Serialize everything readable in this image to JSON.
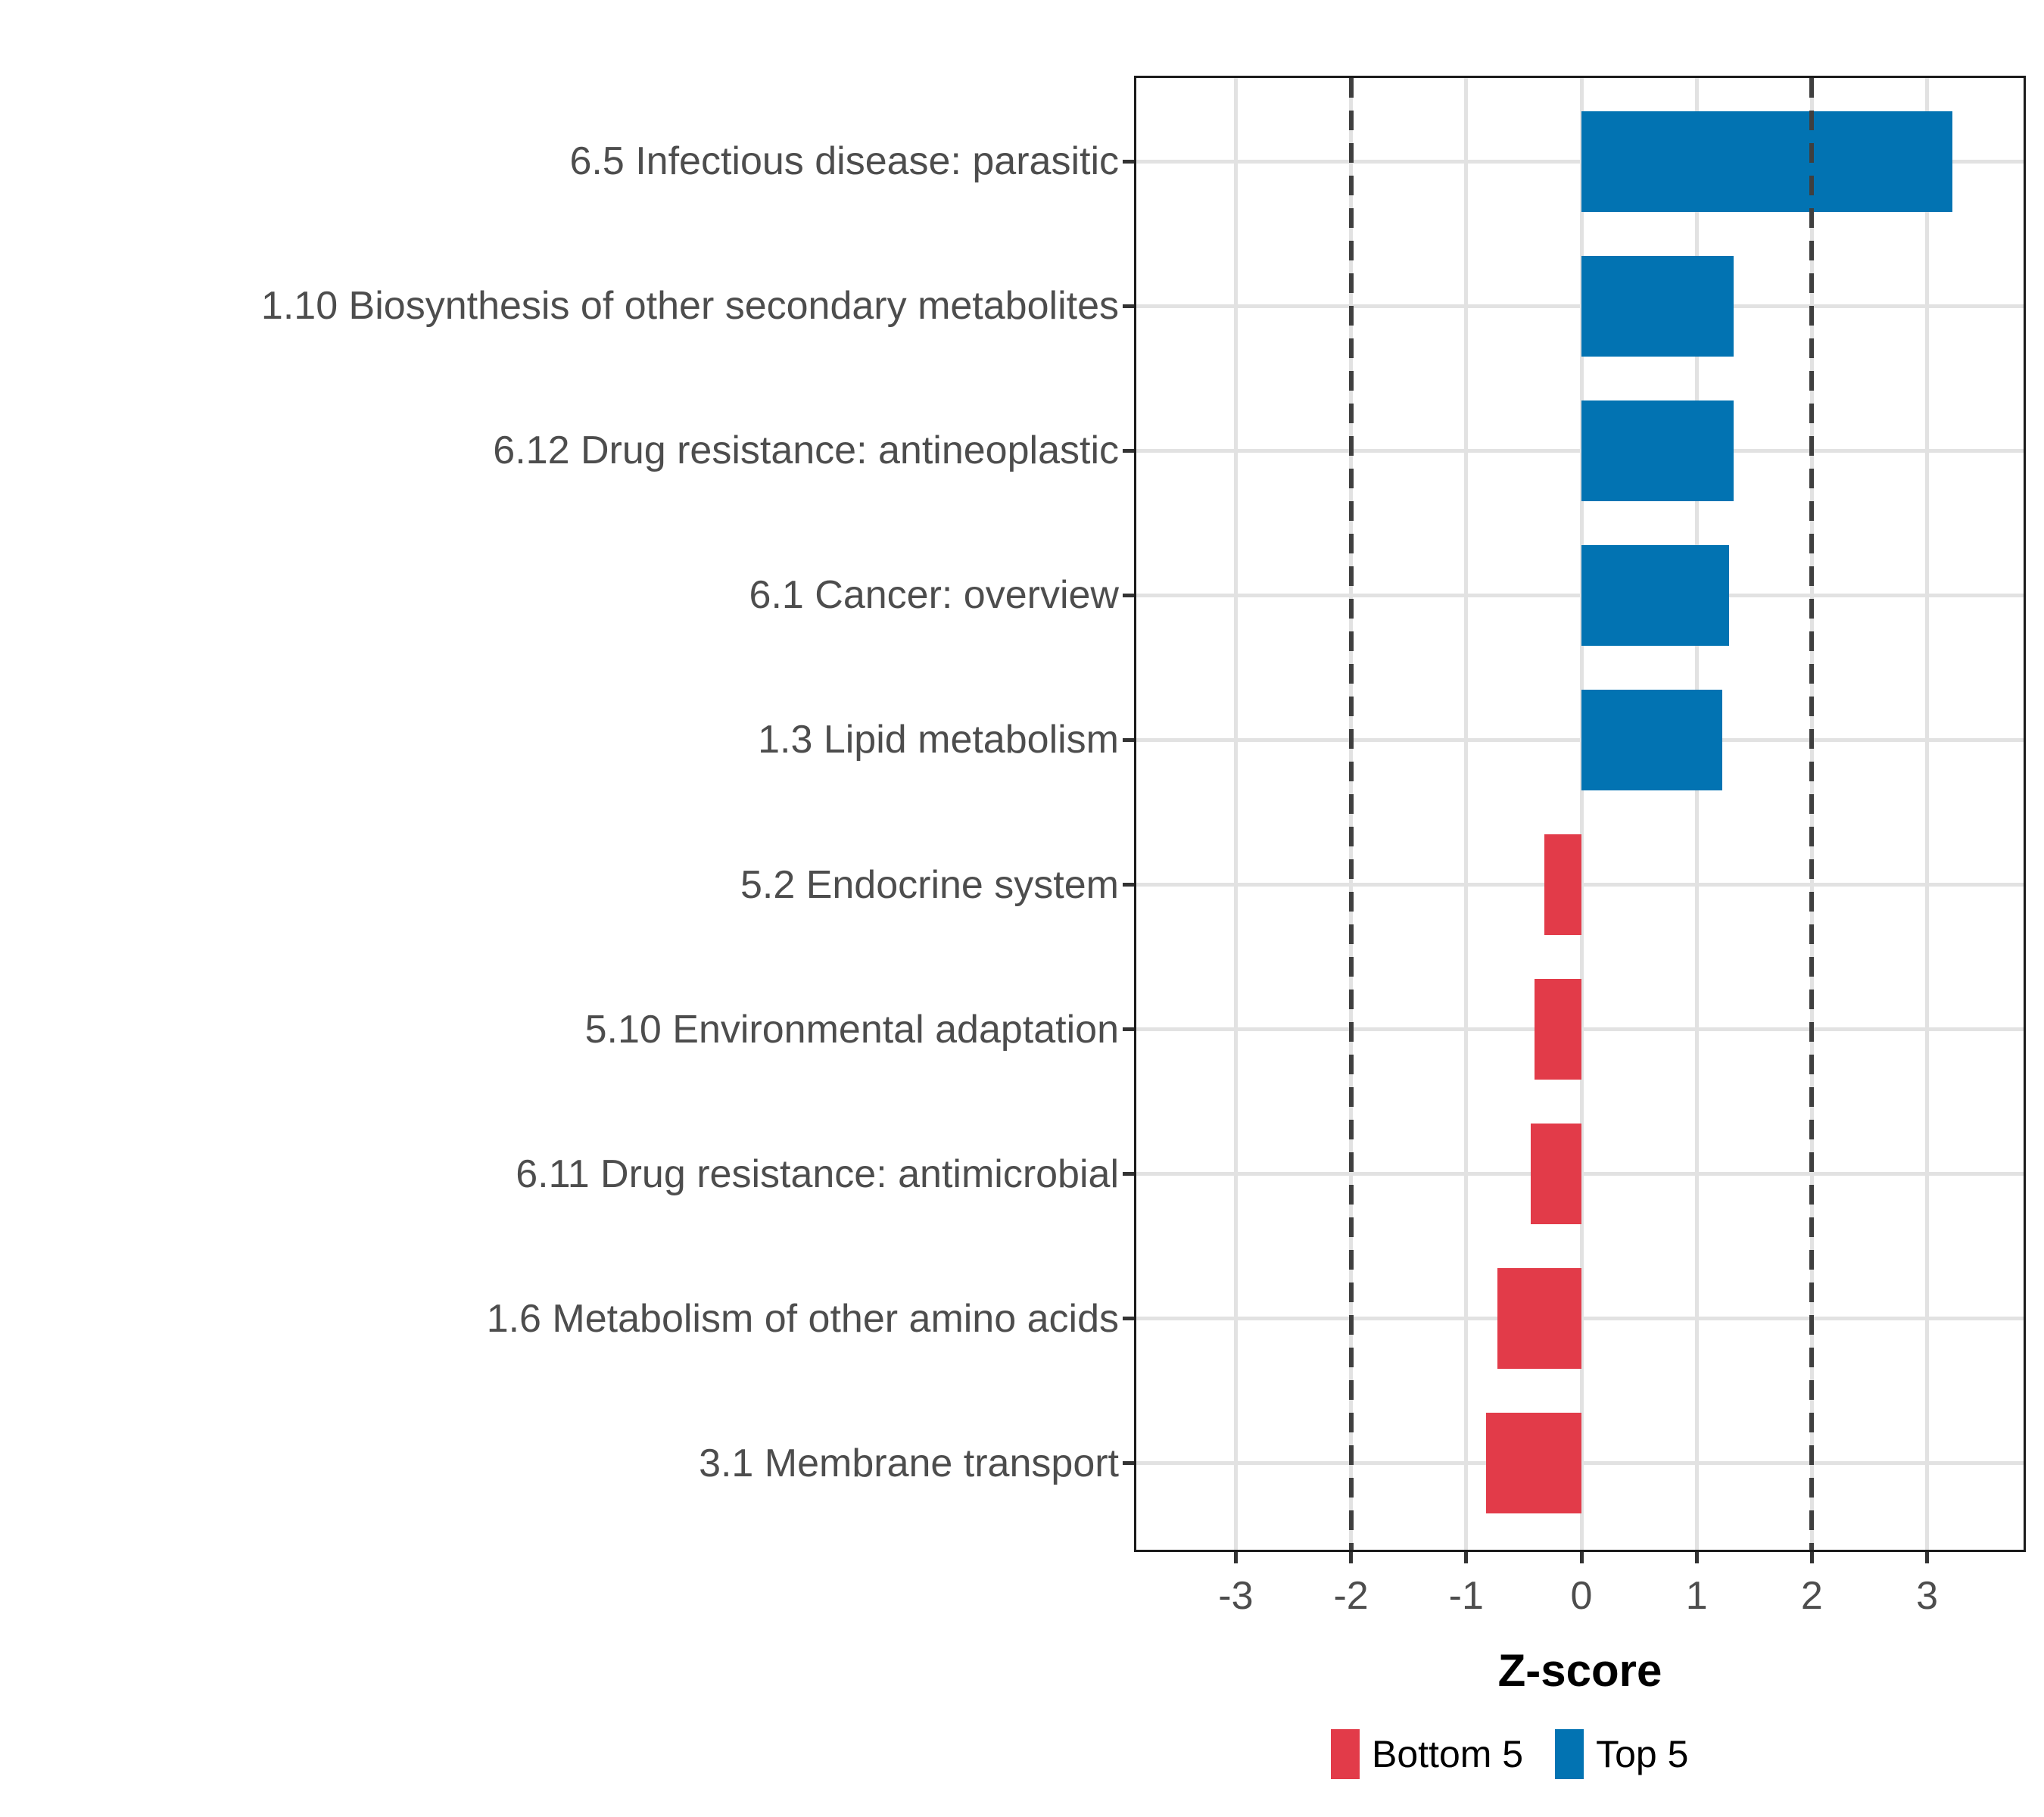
{
  "chart_data": {
    "type": "bar",
    "orientation": "horizontal",
    "xlabel": "Z-score",
    "categories": [
      "6.5 Infectious disease: parasitic",
      "1.10 Biosynthesis of other secondary metabolites",
      "6.12 Drug resistance: antineoplastic",
      "6.1 Cancer: overview",
      "1.3 Lipid metabolism",
      "5.2 Endocrine system",
      "5.10 Environmental adaptation",
      "6.11 Drug resistance: antimicrobial",
      "1.6 Metabolism of other amino acids",
      "3.1 Membrane transport"
    ],
    "values": [
      3.22,
      1.32,
      1.32,
      1.28,
      1.22,
      -0.32,
      -0.41,
      -0.44,
      -0.73,
      -0.83
    ],
    "groups": [
      "top5",
      "top5",
      "top5",
      "top5",
      "top5",
      "bottom5",
      "bottom5",
      "bottom5",
      "bottom5",
      "bottom5"
    ],
    "group_colors": {
      "top5": "#0273b2",
      "bottom5": "#e23b49"
    },
    "x_ticks": [
      -3,
      -2,
      -1,
      0,
      1,
      2,
      3
    ],
    "x_tick_labels": [
      "-3",
      "-2",
      "-1",
      "0",
      "1",
      "2",
      "3"
    ],
    "xlim": [
      -3.88,
      3.86
    ],
    "reference_lines": [
      -2,
      2
    ],
    "grid": "major-only",
    "legend_position": "bottom",
    "legend": {
      "entries": [
        {
          "label": "Bottom 5",
          "color": "#e23b49",
          "group": "bottom5"
        },
        {
          "label": "Top 5",
          "color": "#0273b2",
          "group": "top5"
        }
      ]
    },
    "colors": {
      "grid": "#e2e2e2",
      "reference_line": "#3f3f3f",
      "axis_text": "#4d4d4d",
      "panel_border": "#1b1b1b",
      "background": "#ffffff"
    }
  }
}
